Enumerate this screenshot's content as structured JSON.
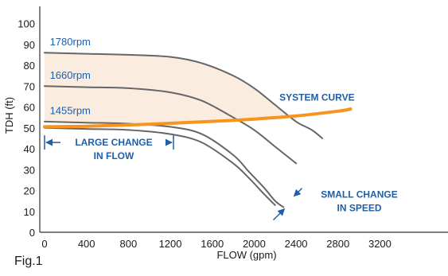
{
  "chart_data": {
    "type": "line",
    "title": "",
    "xlabel": "FLOW (gpm)",
    "ylabel": "TDH (ft)",
    "xlim": [
      0,
      3500
    ],
    "ylim": [
      0,
      100
    ],
    "xticks": [
      0,
      400,
      800,
      1200,
      1600,
      2000,
      2400,
      2800,
      3200
    ],
    "yticks": [
      0,
      10,
      20,
      30,
      40,
      50,
      60,
      70,
      80,
      90,
      100
    ],
    "grid": false,
    "shaded_region_color": "#fbece0",
    "series": [
      {
        "name": "1780rpm",
        "color": "#666666",
        "x": [
          0,
          400,
          800,
          1200,
          1500,
          1800,
          2000,
          2200,
          2400,
          2550,
          2650
        ],
        "y": [
          86,
          85.5,
          85,
          84,
          81,
          75,
          69,
          61,
          53,
          49,
          45
        ]
      },
      {
        "name": "1660rpm",
        "color": "#666666",
        "x": [
          0,
          400,
          800,
          1200,
          1500,
          1800,
          2000,
          2200,
          2300,
          2400
        ],
        "y": [
          70,
          69.5,
          69,
          67,
          63,
          55,
          49,
          41,
          37,
          33
        ]
      },
      {
        "name": "1455rpm",
        "color": "#666666",
        "x": [
          0,
          400,
          800,
          1200,
          1500,
          1800,
          1950,
          2100,
          2200,
          2280
        ],
        "y": [
          53,
          52.5,
          52,
          50.5,
          47,
          37,
          29,
          21,
          15,
          12
        ]
      },
      {
        "name": "",
        "color": "#666666",
        "x": [
          0,
          400,
          800,
          1200,
          1500,
          1800,
          1950,
          2100,
          2200
        ],
        "y": [
          50,
          49.5,
          49,
          47,
          43,
          33,
          26,
          18,
          13
        ]
      },
      {
        "name": "SYSTEM CURVE",
        "color": "#f7941d",
        "x": [
          0,
          400,
          800,
          1200,
          1600,
          2000,
          2400,
          2800,
          2920
        ],
        "y": [
          50.5,
          50.8,
          51.4,
          52.2,
          53.1,
          54.2,
          55.7,
          58,
          59
        ]
      }
    ],
    "annotations": [
      {
        "text_lines": [
          "LARGE CHANGE",
          "IN FLOW"
        ],
        "x_from": 0,
        "x_to": 1230,
        "y": 43
      },
      {
        "text_lines": [
          "SMALL CHANGE",
          "IN SPEED"
        ],
        "x": 2350,
        "y": 15
      }
    ],
    "caption": "Fig.1"
  }
}
